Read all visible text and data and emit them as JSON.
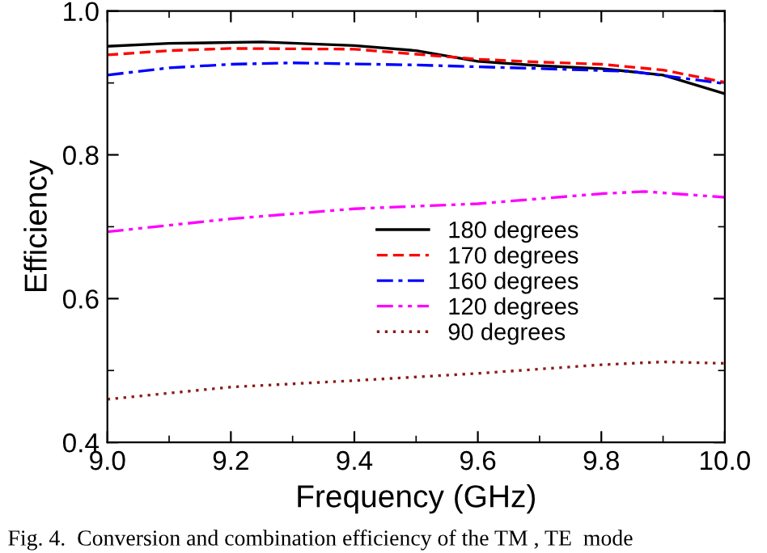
{
  "chart_data": {
    "type": "line",
    "xlabel": "Frequency (GHz)",
    "ylabel": "Efficiency",
    "annotations": [
      "Fig. 4.  Conversion and combination efficiency of the TM , TE  mode"
    ],
    "xlim": [
      9.0,
      10.0
    ],
    "ylim": [
      0.4,
      1.0
    ],
    "xticks": [
      {
        "value": 9.0,
        "label": "9.0"
      },
      9.2,
      9.4,
      9.6,
      9.8,
      {
        "value": 10.0,
        "label": "10.0"
      }
    ],
    "yticks": [
      0.4,
      0.6,
      0.8,
      {
        "value": 1.0,
        "label": "1.0"
      }
    ],
    "grid": false,
    "legend": "center",
    "marker": "none",
    "series": [
      {
        "name": "180 degrees",
        "color": "#000000",
        "line_style": "solid",
        "x": [
          9.0,
          9.1,
          9.25,
          9.4,
          9.5,
          9.6,
          9.7,
          9.8,
          9.9,
          10.0
        ],
        "values": [
          0.951,
          0.955,
          0.957,
          0.952,
          0.945,
          0.93,
          0.924,
          0.92,
          0.911,
          0.885
        ]
      },
      {
        "name": "170 degrees",
        "color": "#ff0000",
        "line_style": "dashed",
        "x": [
          9.0,
          9.1,
          9.2,
          9.4,
          9.5,
          9.6,
          9.7,
          9.8,
          9.9,
          10.0
        ],
        "values": [
          0.939,
          0.945,
          0.948,
          0.947,
          0.94,
          0.933,
          0.929,
          0.926,
          0.918,
          0.901
        ]
      },
      {
        "name": "160 degrees",
        "color": "#0000ff",
        "line_style": "dashdot",
        "x": [
          9.0,
          9.1,
          9.2,
          9.3,
          9.5,
          9.7,
          9.85,
          10.0
        ],
        "values": [
          0.911,
          0.921,
          0.926,
          0.928,
          0.925,
          0.92,
          0.916,
          0.899
        ]
      },
      {
        "name": "120 degrees",
        "color": "#ff00ff",
        "line_style": "dashdotdot",
        "x": [
          9.0,
          9.2,
          9.4,
          9.6,
          9.8,
          9.87,
          10.0
        ],
        "values": [
          0.693,
          0.711,
          0.725,
          0.732,
          0.746,
          0.749,
          0.741
        ]
      },
      {
        "name": "90 degrees",
        "color": "#8b1a1a",
        "line_style": "dotted",
        "x": [
          9.0,
          9.2,
          9.4,
          9.6,
          9.8,
          9.9,
          10.0
        ],
        "values": [
          0.46,
          0.477,
          0.486,
          0.496,
          0.508,
          0.512,
          0.51
        ]
      }
    ]
  }
}
